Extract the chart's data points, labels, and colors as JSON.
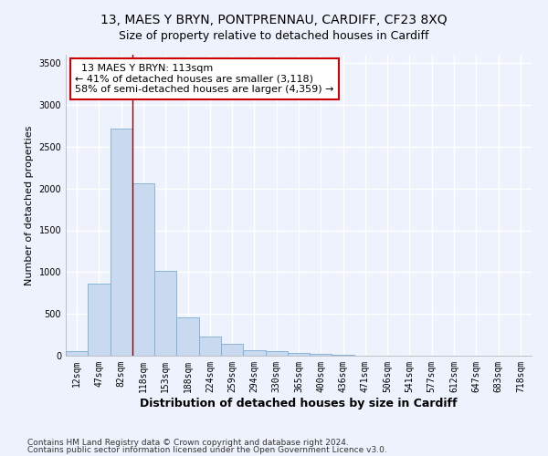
{
  "title1": "13, MAES Y BRYN, PONTPRENNAU, CARDIFF, CF23 8XQ",
  "title2": "Size of property relative to detached houses in Cardiff",
  "xlabel": "Distribution of detached houses by size in Cardiff",
  "ylabel": "Number of detached properties",
  "categories": [
    "12sqm",
    "47sqm",
    "82sqm",
    "118sqm",
    "153sqm",
    "188sqm",
    "224sqm",
    "259sqm",
    "294sqm",
    "330sqm",
    "365sqm",
    "400sqm",
    "436sqm",
    "471sqm",
    "506sqm",
    "541sqm",
    "577sqm",
    "612sqm",
    "647sqm",
    "683sqm",
    "718sqm"
  ],
  "values": [
    60,
    860,
    2720,
    2060,
    1010,
    460,
    230,
    145,
    70,
    55,
    35,
    25,
    15,
    5,
    5,
    0,
    0,
    0,
    0,
    0,
    0
  ],
  "bar_color": "#c9d9f0",
  "bar_edge_color": "#7aadd4",
  "vline_x": 2.5,
  "vline_color": "#8b0000",
  "annotation_text": "  13 MAES Y BRYN: 113sqm\n← 41% of detached houses are smaller (3,118)\n58% of semi-detached houses are larger (4,359) →",
  "annotation_box_color": "#cc0000",
  "ylim": [
    0,
    3600
  ],
  "yticks": [
    0,
    500,
    1000,
    1500,
    2000,
    2500,
    3000,
    3500
  ],
  "footer1": "Contains HM Land Registry data © Crown copyright and database right 2024.",
  "footer2": "Contains public sector information licensed under the Open Government Licence v3.0.",
  "bg_color": "#eef2fc",
  "plot_bg_color": "#eef2fc",
  "grid_color": "#ffffff",
  "title1_fontsize": 10,
  "title2_fontsize": 9,
  "xlabel_fontsize": 9,
  "ylabel_fontsize": 8,
  "tick_fontsize": 7,
  "footer_fontsize": 6.5,
  "annotation_fontsize": 8
}
